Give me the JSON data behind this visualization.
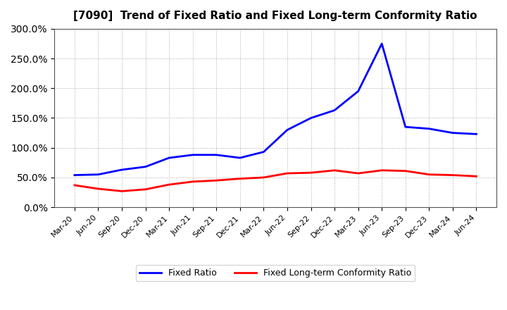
{
  "title": "[7090]  Trend of Fixed Ratio and Fixed Long-term Conformity Ratio",
  "x_labels": [
    "Mar-20",
    "Jun-20",
    "Sep-20",
    "Dec-20",
    "Mar-21",
    "Jun-21",
    "Sep-21",
    "Dec-21",
    "Mar-22",
    "Jun-22",
    "Sep-22",
    "Dec-22",
    "Mar-23",
    "Jun-23",
    "Sep-23",
    "Dec-23",
    "Mar-24",
    "Jun-24"
  ],
  "fixed_ratio": [
    54.0,
    55.0,
    63.0,
    68.0,
    83.0,
    88.0,
    88.0,
    83.0,
    93.0,
    130.0,
    150.0,
    163.0,
    195.0,
    275.0,
    135.0,
    132.0,
    125.0,
    123.0
  ],
  "fixed_lt_ratio": [
    37.0,
    31.0,
    27.0,
    30.0,
    38.0,
    43.0,
    45.0,
    48.0,
    50.0,
    57.0,
    58.0,
    62.0,
    57.0,
    62.0,
    61.0,
    55.0,
    54.0,
    52.0
  ],
  "fixed_ratio_color": "#0000FF",
  "fixed_lt_ratio_color": "#FF0000",
  "ylim_min": 0.0,
  "ylim_max": 300.0,
  "yticks": [
    0.0,
    50.0,
    100.0,
    150.0,
    200.0,
    250.0,
    300.0
  ],
  "background_color": "#FFFFFF",
  "plot_bg_color": "#FFFFFF",
  "grid_color": "#AAAAAA",
  "legend_fixed": "Fixed Ratio",
  "legend_fixed_lt": "Fixed Long-term Conformity Ratio"
}
